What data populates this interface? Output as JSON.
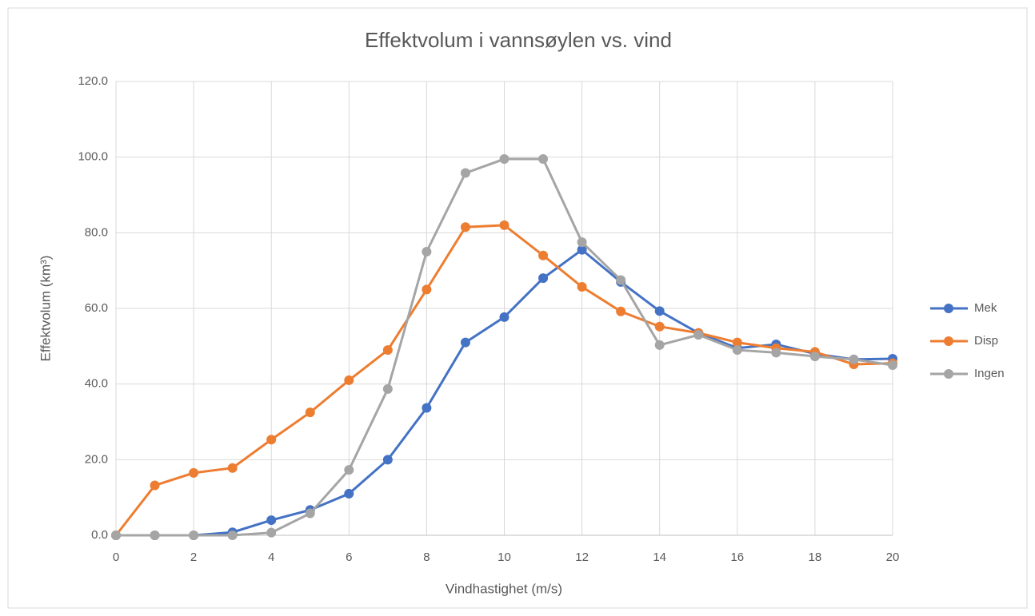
{
  "chart_data": {
    "type": "line",
    "title": "Effektvolum i vannsøylen vs. vind",
    "x_label": "Vindhastighet (m/s)",
    "y_label": "Effektvolum (km³)",
    "x": [
      0,
      1,
      2,
      3,
      4,
      5,
      6,
      7,
      8,
      9,
      10,
      11,
      12,
      13,
      14,
      15,
      16,
      17,
      18,
      19,
      20
    ],
    "series": [
      {
        "name": "Mek",
        "color": "#4472c4",
        "values": [
          0,
          0,
          0,
          0.8,
          4,
          6.7,
          11,
          20,
          33.7,
          51,
          57.7,
          68,
          75.5,
          67,
          59.3,
          53.5,
          49.5,
          50.5,
          48,
          46.5,
          46.7
        ]
      },
      {
        "name": "Disp",
        "color": "#ed7d31",
        "values": [
          0,
          13.2,
          16.5,
          17.8,
          25.3,
          32.5,
          41,
          49,
          65,
          81.5,
          82,
          74,
          65.7,
          59.2,
          55.2,
          53.5,
          51,
          49.5,
          48.5,
          45.2,
          45.5
        ]
      },
      {
        "name": "Ingen",
        "color": "#a5a5a5",
        "values": [
          0,
          0,
          0,
          0,
          0.7,
          5.8,
          17.3,
          38.7,
          75,
          95.8,
          99.5,
          99.5,
          77.5,
          67.5,
          50.3,
          53,
          49,
          48.3,
          47.3,
          46.5,
          45
        ]
      }
    ],
    "xlim": [
      0,
      20
    ],
    "xticks": [
      0,
      2,
      4,
      6,
      8,
      10,
      12,
      14,
      16,
      18,
      20
    ],
    "ylim": [
      0,
      120
    ],
    "yticks": [
      {
        "value": 0,
        "label": "0.0"
      },
      {
        "value": 20,
        "label": "20.0"
      },
      {
        "value": 40,
        "label": "40.0"
      },
      {
        "value": 60,
        "label": "60.0"
      },
      {
        "value": 80,
        "label": "80.0"
      },
      {
        "value": 100,
        "label": "100.0"
      },
      {
        "value": 120,
        "label": "120.0"
      }
    ],
    "grid": true,
    "legend": "right"
  }
}
